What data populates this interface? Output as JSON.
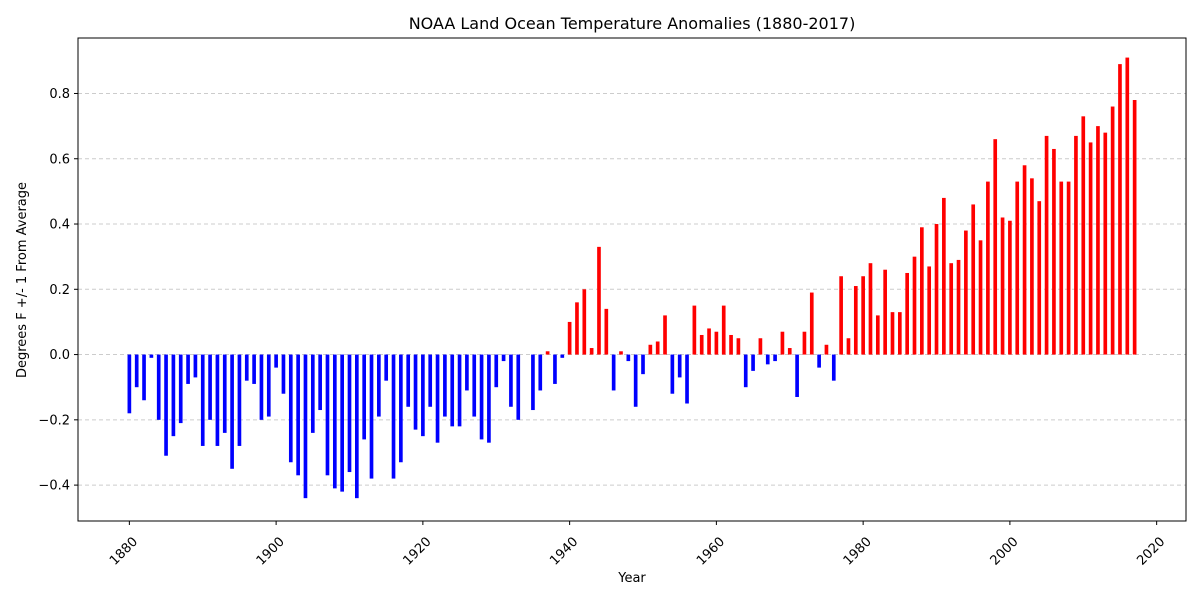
{
  "chart_data": {
    "type": "bar",
    "title": "NOAA Land Ocean Temperature Anomalies (1880-2017)",
    "xlabel": "Year",
    "ylabel": "Degrees F +/- 1 From Average",
    "xlim": [
      1873,
      2024
    ],
    "ylim": [
      -0.51,
      0.97
    ],
    "x_ticks": [
      1880,
      1900,
      1920,
      1940,
      1960,
      1980,
      2000,
      2020
    ],
    "y_ticks": [
      -0.4,
      -0.2,
      0.0,
      0.2,
      0.4,
      0.6,
      0.8
    ],
    "grid": "y-dashed",
    "colors": {
      "negative": "#0000ff",
      "positive": "#ff0000",
      "grid": "#cccccc"
    },
    "x": [
      1880,
      1881,
      1882,
      1883,
      1884,
      1885,
      1886,
      1887,
      1888,
      1889,
      1890,
      1891,
      1892,
      1893,
      1894,
      1895,
      1896,
      1897,
      1898,
      1899,
      1900,
      1901,
      1902,
      1903,
      1904,
      1905,
      1906,
      1907,
      1908,
      1909,
      1910,
      1911,
      1912,
      1913,
      1914,
      1915,
      1916,
      1917,
      1918,
      1919,
      1920,
      1921,
      1922,
      1923,
      1924,
      1925,
      1926,
      1927,
      1928,
      1929,
      1930,
      1931,
      1932,
      1933,
      1934,
      1935,
      1936,
      1937,
      1938,
      1939,
      1940,
      1941,
      1942,
      1943,
      1944,
      1945,
      1946,
      1947,
      1948,
      1949,
      1950,
      1951,
      1952,
      1953,
      1954,
      1955,
      1956,
      1957,
      1958,
      1959,
      1960,
      1961,
      1962,
      1963,
      1964,
      1965,
      1966,
      1967,
      1968,
      1969,
      1970,
      1971,
      1972,
      1973,
      1974,
      1975,
      1976,
      1977,
      1978,
      1979,
      1980,
      1981,
      1982,
      1983,
      1984,
      1985,
      1986,
      1987,
      1988,
      1989,
      1990,
      1991,
      1992,
      1993,
      1994,
      1995,
      1996,
      1997,
      1998,
      1999,
      2000,
      2001,
      2002,
      2003,
      2004,
      2005,
      2006,
      2007,
      2008,
      2009,
      2010,
      2011,
      2012,
      2013,
      2014,
      2015,
      2016,
      2017
    ],
    "values": [
      -0.18,
      -0.1,
      -0.14,
      -0.01,
      -0.2,
      -0.31,
      -0.25,
      -0.21,
      -0.09,
      -0.07,
      -0.28,
      -0.2,
      -0.28,
      -0.24,
      -0.35,
      -0.28,
      -0.08,
      -0.09,
      -0.2,
      -0.19,
      -0.04,
      -0.12,
      -0.33,
      -0.37,
      -0.44,
      -0.24,
      -0.17,
      -0.37,
      -0.41,
      -0.42,
      -0.36,
      -0.44,
      -0.26,
      -0.38,
      -0.19,
      -0.08,
      -0.38,
      -0.33,
      -0.16,
      -0.23,
      -0.25,
      -0.16,
      -0.27,
      -0.19,
      -0.22,
      -0.22,
      -0.11,
      -0.19,
      -0.26,
      -0.27,
      -0.1,
      -0.02,
      -0.16,
      -0.2,
      0.0,
      -0.17,
      -0.11,
      0.01,
      -0.09,
      -0.01,
      0.1,
      0.16,
      0.2,
      0.02,
      0.33,
      0.14,
      -0.11,
      0.01,
      -0.02,
      -0.16,
      -0.06,
      0.03,
      0.04,
      0.12,
      -0.12,
      -0.07,
      -0.15,
      0.15,
      0.06,
      0.08,
      0.07,
      0.15,
      0.06,
      0.05,
      -0.1,
      -0.05,
      0.05,
      -0.03,
      -0.02,
      0.07,
      0.02,
      -0.13,
      0.07,
      0.19,
      -0.04,
      0.03,
      -0.08,
      0.24,
      0.05,
      0.21,
      0.24,
      0.28,
      0.12,
      0.26,
      0.13,
      0.13,
      0.25,
      0.3,
      0.39,
      0.27,
      0.4,
      0.48,
      0.28,
      0.29,
      0.38,
      0.46,
      0.35,
      0.53,
      0.66,
      0.42,
      0.41,
      0.53,
      0.58,
      0.54,
      0.47,
      0.67,
      0.63,
      0.53,
      0.53,
      0.67,
      0.73,
      0.65,
      0.7,
      0.68,
      0.76,
      0.89,
      0.91,
      0.78
    ]
  }
}
